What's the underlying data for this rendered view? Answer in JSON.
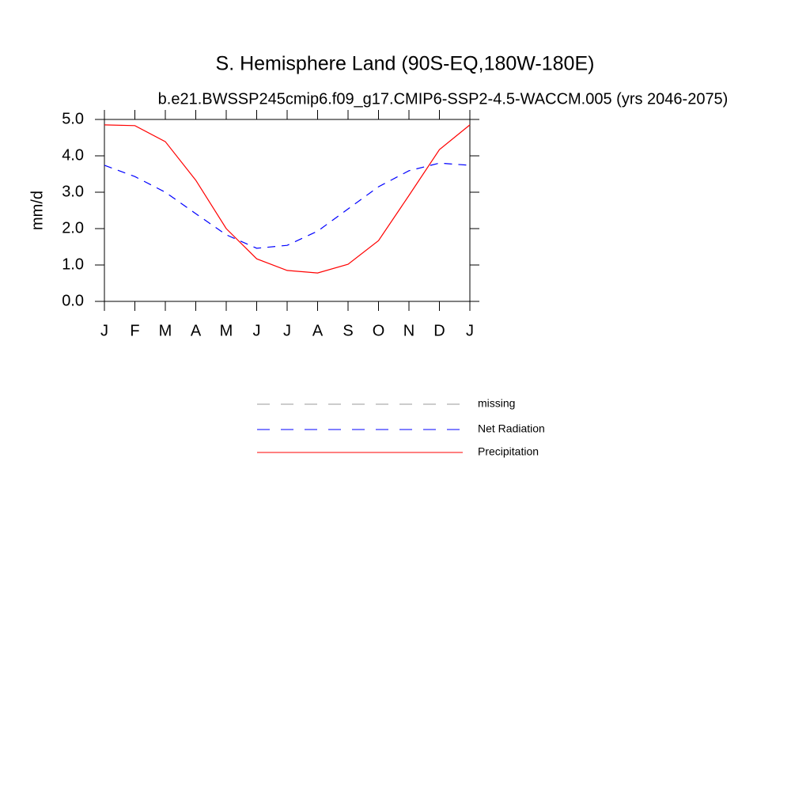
{
  "chart_data": {
    "type": "line",
    "title": "S. Hemisphere Land (90S-EQ,180W-180E)",
    "subtitle": "b.e21.BWSSP245cmip6.f09_g17.CMIP6-SSP2-4.5-WACCM.005 (yrs 2046-2075)",
    "y_label": "mm/d",
    "categories": [
      "J",
      "F",
      "M",
      "A",
      "M",
      "J",
      "J",
      "A",
      "S",
      "O",
      "N",
      "D",
      "J"
    ],
    "series": [
      {
        "name": "missing",
        "color": "#999999",
        "dash": true,
        "values": [
          null,
          null,
          null,
          null,
          null,
          null,
          null,
          null,
          null,
          null,
          null,
          null,
          null
        ]
      },
      {
        "name": "Net Radiation",
        "color": "#0000ff",
        "dash": true,
        "values": [
          3.74,
          3.43,
          3.0,
          2.41,
          1.83,
          1.46,
          1.54,
          1.93,
          2.54,
          3.15,
          3.59,
          3.8,
          3.74
        ]
      },
      {
        "name": "Precipitation",
        "color": "#ff0000",
        "dash": false,
        "values": [
          4.85,
          4.83,
          4.39,
          3.33,
          2.0,
          1.17,
          0.85,
          0.78,
          1.02,
          1.67,
          2.91,
          4.17,
          4.85
        ]
      }
    ],
    "ylim": [
      0,
      5
    ],
    "yticks": [
      {
        "value": 0,
        "label": "0.0"
      },
      {
        "value": 1,
        "label": "1.0"
      },
      {
        "value": 2,
        "label": "2.0"
      },
      {
        "value": 3,
        "label": "3.0"
      },
      {
        "value": 4,
        "label": "4.0"
      },
      {
        "value": 5,
        "label": "5.0"
      }
    ]
  }
}
